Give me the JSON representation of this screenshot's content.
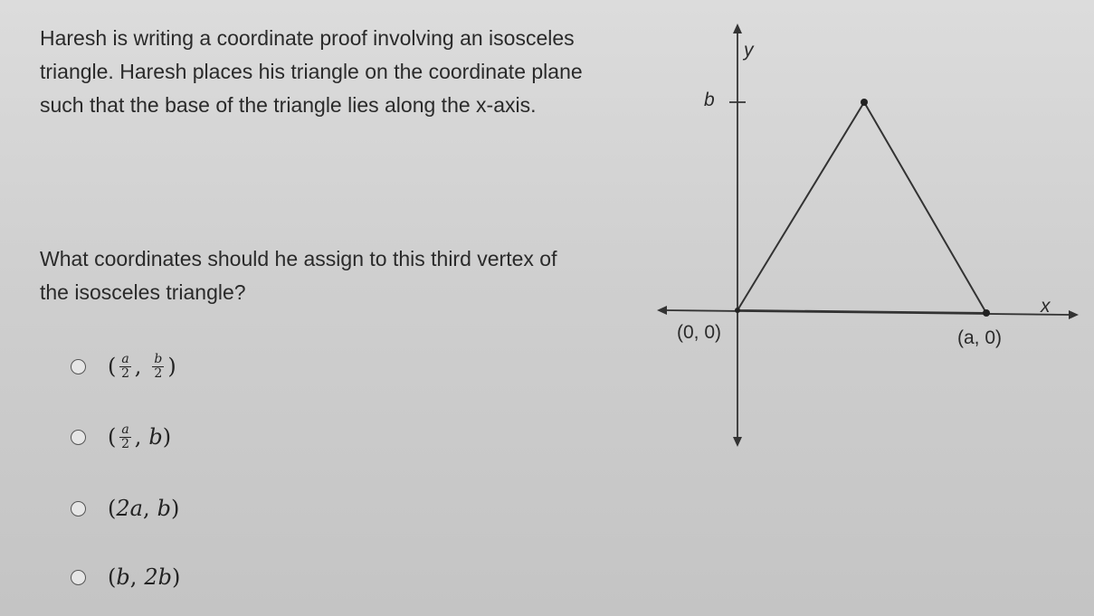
{
  "question": {
    "paragraphs": [
      "Haresh is writing a coordinate proof involving an isosceles triangle. Haresh places his triangle on the coordinate plane such that the base of the triangle lies along the x-axis.",
      "What coordinates should he assign to this third vertex of the isosceles triangle?"
    ]
  },
  "diagram": {
    "y_label": "y",
    "x_label": "x",
    "b_label": "b",
    "origin_label": "(0, 0)",
    "a_label": "(a, 0)"
  },
  "punctuation": {
    "open": "(",
    "comma": ",",
    "close": ")"
  },
  "options": [
    {
      "x": {
        "num": "a",
        "den": "2"
      },
      "y": {
        "num": "b",
        "den": "2"
      }
    },
    {
      "x": {
        "num": "a",
        "den": "2"
      },
      "y": "b"
    },
    {
      "x": "2a",
      "y": "b"
    },
    {
      "x": "b",
      "y": "2b"
    }
  ]
}
